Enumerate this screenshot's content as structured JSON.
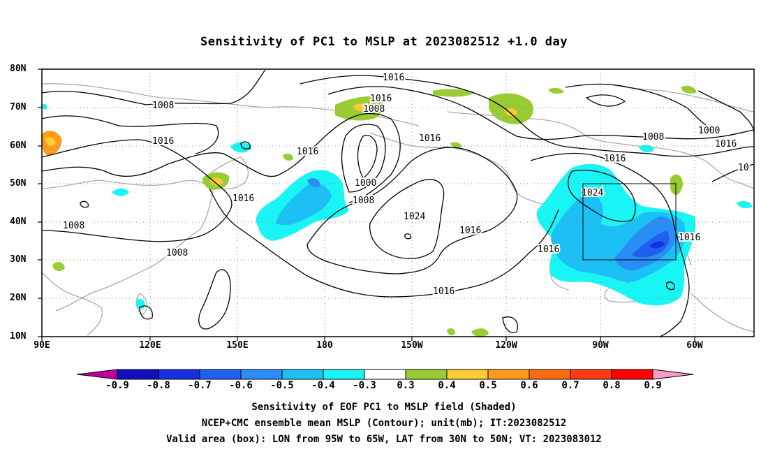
{
  "title": "Sensitivity of PC1 to MSLP at 2023082512 +1.0 day",
  "lat_labels": [
    "80N",
    "70N",
    "60N",
    "50N",
    "40N",
    "30N",
    "20N",
    "10N"
  ],
  "lon_labels": [
    "90E",
    "120E",
    "150E",
    "180",
    "150W",
    "120W",
    "90W",
    "60W"
  ],
  "contour_labels": [
    "1016",
    "1016",
    "1008",
    "1008",
    "1016",
    "1016",
    "1016",
    "1008",
    "1016",
    "1000",
    "1008",
    "1016",
    "1024",
    "1016",
    "1024",
    "1016",
    "1016",
    "1008",
    "1008",
    "1016",
    "1000",
    "1016",
    "10"
  ],
  "colorbar": {
    "labels": [
      "-0.9",
      "-0.8",
      "-0.7",
      "-0.6",
      "-0.5",
      "-0.4",
      "-0.3",
      "0.3",
      "0.4",
      "0.5",
      "0.6",
      "0.7",
      "0.8",
      "0.9"
    ],
    "colors": [
      "#c000a0",
      "#1010c0",
      "#1530e0",
      "#2060f0",
      "#2a8cf5",
      "#1cc0f5",
      "#19f5f5",
      "#ffffff",
      "#99cc33",
      "#ffcc33",
      "#ff9a1a",
      "#ff6a10",
      "#ff3a10",
      "#ff0000",
      "#ff99cc"
    ]
  },
  "captions": [
    "Sensitivity of EOF PC1 to MSLP field (Shaded)",
    "NCEP+CMC ensemble mean MSLP (Contour); unit(mb); IT:2023082512",
    "Valid area (box): LON from 95W to 65W, LAT from 30N to 50N; VT: 2023083012"
  ]
}
